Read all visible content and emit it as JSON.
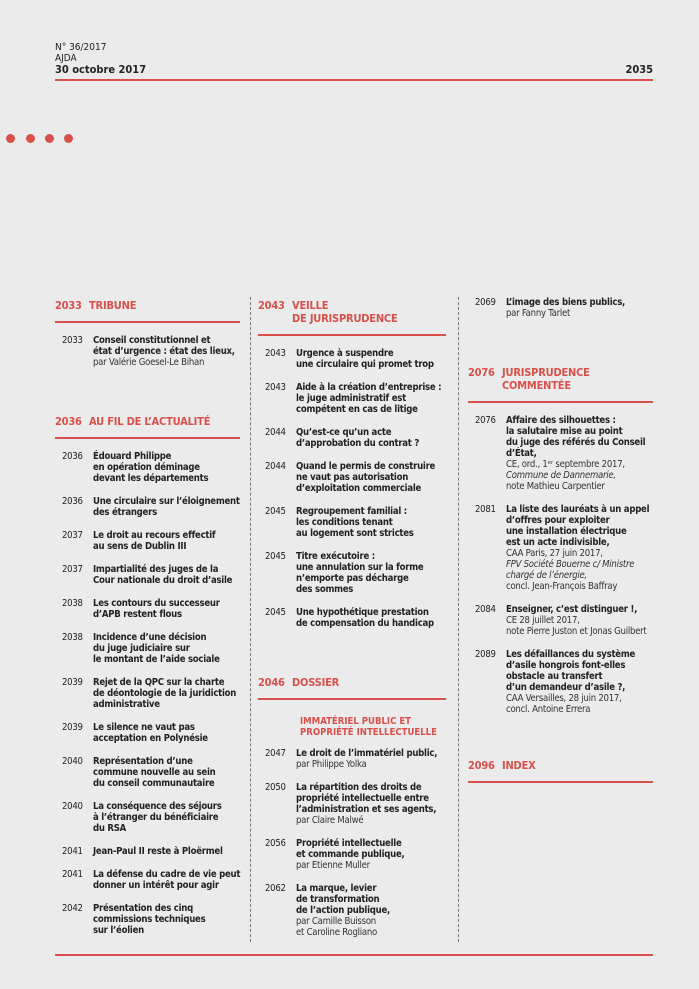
{
  "header": {
    "issue": "N° 36/2017",
    "journal": "AJDA",
    "date": "30 octobre 2017",
    "page": "2035"
  },
  "columns": [
    {
      "sections": [
        {
          "page": "2033",
          "title": [
            "TRIBUNE"
          ],
          "items": [
            {
              "page": "2033",
              "title": [
                "Conseil constitutionnel et",
                "état d’urgence : état des lieux,"
              ],
              "byline": [
                "par Valérie Goesel-Le Bihan"
              ]
            }
          ]
        },
        {
          "page": "2036",
          "title": [
            "AU FIL DE L’ACTUALITÉ"
          ],
          "items": [
            {
              "page": "2036",
              "title": [
                "Édouard Philippe",
                "en opération déminage",
                "devant les départements"
              ]
            },
            {
              "page": "2036",
              "title": [
                "Une circulaire sur l’éloignement",
                "des étrangers"
              ]
            },
            {
              "page": "2037",
              "title": [
                "Le droit au recours effectif",
                "au sens de Dublin III"
              ]
            },
            {
              "page": "2037",
              "title": [
                "Impartialité des juges de la",
                "Cour nationale du droit d’asile"
              ]
            },
            {
              "page": "2038",
              "title": [
                "Les contours du successeur",
                "d’APB restent flous"
              ]
            },
            {
              "page": "2038",
              "title": [
                "Incidence d’une décision",
                "du juge judiciaire sur",
                "le montant de l’aide sociale"
              ]
            },
            {
              "page": "2039",
              "title": [
                "Rejet de la QPC sur la charte",
                "de déontologie de la juridiction",
                "administrative"
              ]
            },
            {
              "page": "2039",
              "title": [
                "Le silence ne vaut pas",
                "acceptation en Polynésie"
              ]
            },
            {
              "page": "2040",
              "title": [
                "Représentation d’une",
                "commune nouvelle au sein",
                "du conseil communautaire"
              ]
            },
            {
              "page": "2040",
              "title": [
                "La conséquence des séjours",
                "à l’étranger du bénéficiaire",
                "du RSA"
              ]
            },
            {
              "page": "2041",
              "title": [
                "Jean-Paul II reste à Ploërmel"
              ]
            },
            {
              "page": "2041",
              "title": [
                "La défense du cadre de vie peut",
                "donner un intérêt pour agir"
              ]
            },
            {
              "page": "2042",
              "title": [
                "Présentation des cinq",
                "commissions techniques",
                "sur l’éolien"
              ]
            }
          ]
        }
      ]
    },
    {
      "sections": [
        {
          "page": "2043",
          "title": [
            "VEILLE",
            "DE JURISPRUDENCE"
          ],
          "items": [
            {
              "page": "2043",
              "title": [
                "Urgence à suspendre",
                "une circulaire qui promet trop"
              ]
            },
            {
              "page": "2043",
              "title": [
                "Aide à la création d’entreprise :",
                "le juge administratif est",
                "compétent en cas de litige"
              ]
            },
            {
              "page": "2044",
              "title": [
                "Qu’est-ce qu’un acte",
                "d’approbation du contrat ?"
              ]
            },
            {
              "page": "2044",
              "title": [
                "Quand le permis de construire",
                "ne vaut pas autorisation",
                "d’exploitation commerciale"
              ]
            },
            {
              "page": "2045",
              "title": [
                "Regroupement familial :",
                "les conditions tenant",
                "au logement sont strictes"
              ]
            },
            {
              "page": "2045",
              "title": [
                "Titre exécutoire :",
                "une annulation sur la forme",
                "n’emporte pas décharge",
                "des sommes"
              ]
            },
            {
              "page": "2045",
              "title": [
                "Une hypothétique prestation",
                "de compensation du handicap"
              ]
            }
          ]
        },
        {
          "page": "2046",
          "title": [
            "DOSSIER"
          ],
          "subtitle": [
            "IMMATÉRIEL PUBLIC ET",
            "PROPRIÉTÉ INTELLECTUELLE"
          ],
          "items": [
            {
              "page": "2047",
              "title": [
                "Le droit de l’immatériel public,"
              ],
              "byline": [
                "par Philippe Yolka"
              ]
            },
            {
              "page": "2050",
              "title": [
                "La répartition des droits de",
                "propriété intellectuelle entre",
                "l’administration et ses agents,"
              ],
              "byline": [
                "par Claire Malwé"
              ]
            },
            {
              "page": "2056",
              "title": [
                "Propriété intellectuelle",
                "et commande publique,"
              ],
              "byline": [
                "par Etienne Muller"
              ]
            },
            {
              "page": "2062",
              "title": [
                "La marque, levier",
                "de transformation",
                "de l’action publique,"
              ],
              "byline": [
                "par Camille Buisson",
                "et Caroline Rogliano"
              ]
            }
          ]
        }
      ]
    },
    {
      "sections": [
        {
          "items": [
            {
              "page": "2069",
              "title": [
                "L’image des biens publics,"
              ],
              "byline": [
                "par Fanny Tarlet"
              ]
            }
          ]
        },
        {
          "page": "2076",
          "title": [
            "JURISPRUDENCE",
            "COMMENTÉE"
          ],
          "items": [
            {
              "page": "2076",
              "title": [
                "Affaire des silhouettes :",
                "la salutaire mise au point",
                "du juge des référés du Conseil",
                "d’État,"
              ],
              "byline": [
                "CE, ord., 1ᵉʳ septembre 2017,",
                {
                  "italic": "Commune de Dannemarie,"
                },
                "note Mathieu Carpentier"
              ]
            },
            {
              "page": "2081",
              "title": [
                "La liste des lauréats à un appel",
                "d’offres pour exploiter",
                "une installation électrique",
                "est un acte indivisible,"
              ],
              "byline": [
                "CAA Paris, 27 juin 2017,",
                {
                  "italic": "FPV Société Bouerne c/ Ministre"
                },
                {
                  "italic": "chargé de l’énergie,"
                },
                "concl. Jean-François Baffray"
              ]
            },
            {
              "page": "2084",
              "title": [
                "Enseigner, c’est distinguer !,"
              ],
              "byline": [
                "CE 28 juillet 2017,",
                "note Pierre Juston et Jonas Guilbert"
              ]
            },
            {
              "page": "2089",
              "title": [
                "Les défaillances du système",
                "d’asile hongrois font-elles",
                "obstacle au transfert",
                "d’un demandeur d’asile ?,"
              ],
              "byline": [
                "CAA Versailles, 28 juin 2017,",
                "concl. Antoine Errera"
              ]
            }
          ]
        },
        {
          "page": "2096",
          "title": [
            "INDEX"
          ],
          "items": []
        }
      ]
    }
  ]
}
